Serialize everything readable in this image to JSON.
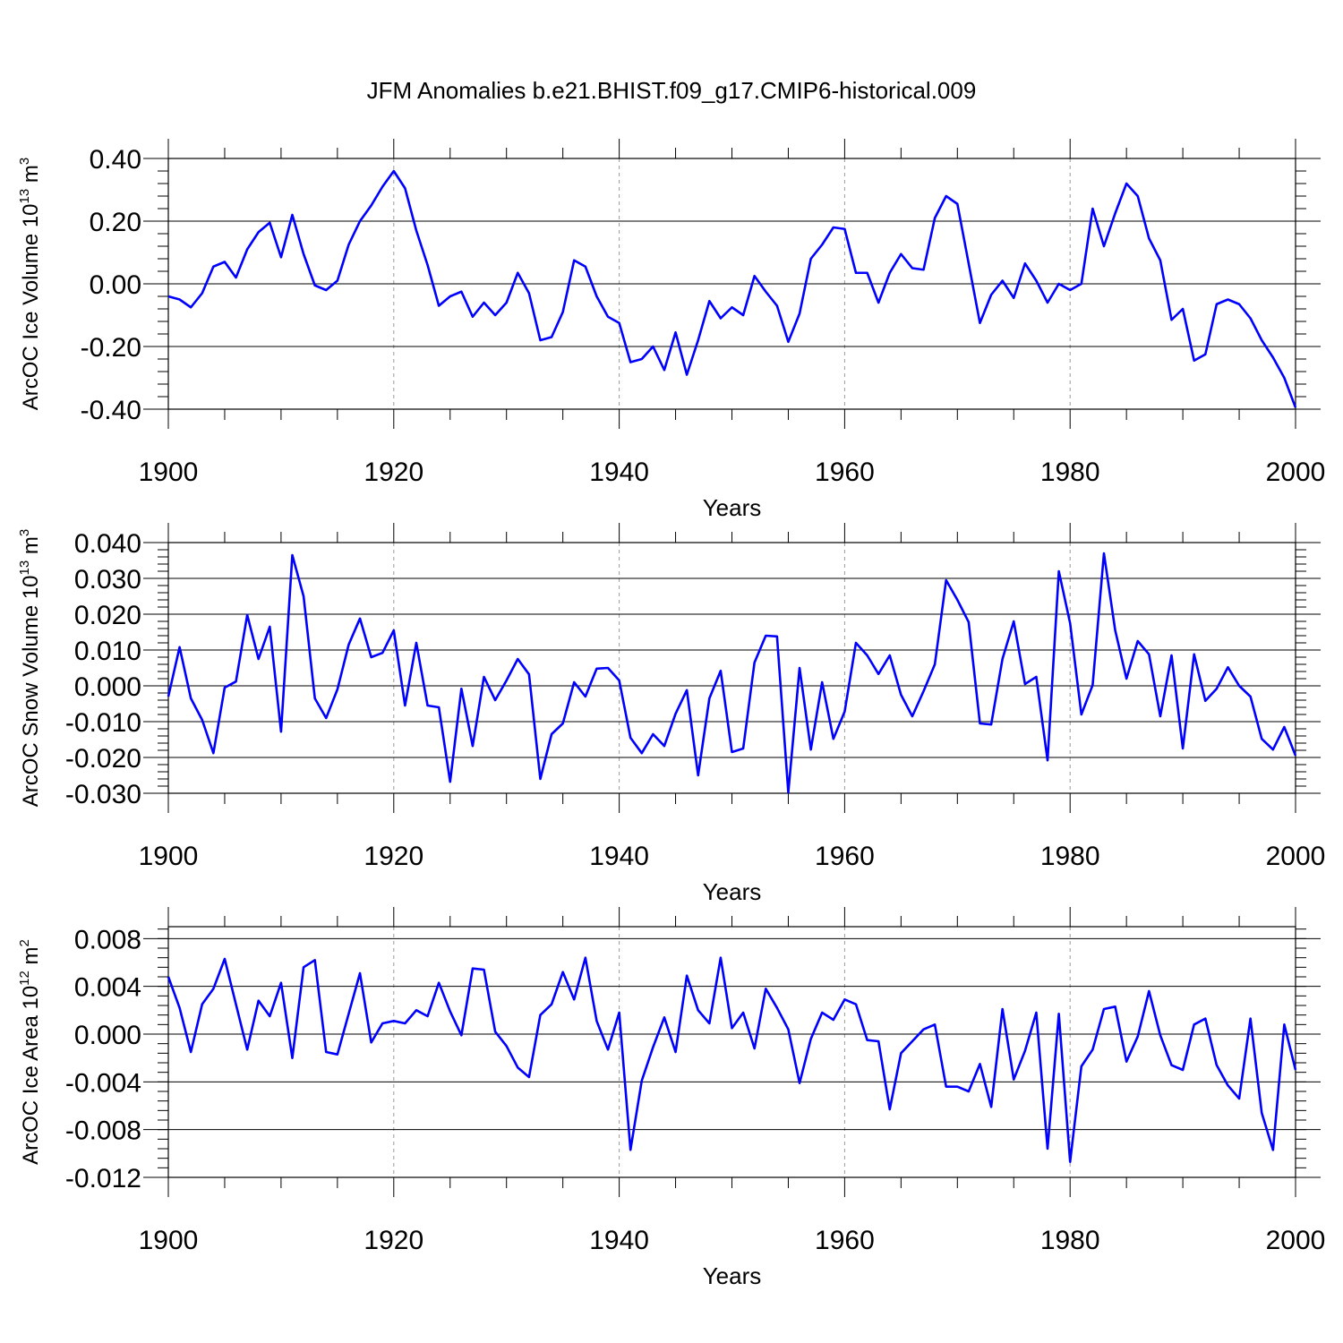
{
  "title": "JFM Anomalies b.e21.BHIST.f09_g17.CMIP6-historical.009",
  "series_color": "#0000ff",
  "chart_data": [
    {
      "type": "line",
      "id": "ice-volume",
      "ylabel": {
        "text": "ArcOC Ice Volume 10",
        "sup": "13",
        "unit": "m",
        "unit_sup": "3"
      },
      "xlabel": "Years",
      "xlim": [
        1900,
        2000
      ],
      "ylim": [
        -0.4,
        0.4
      ],
      "yticks": [
        0.4,
        0.2,
        0.0,
        -0.2,
        -0.4
      ],
      "ytick_labels": [
        "0.40",
        "0.20",
        "0.00",
        "-0.20",
        "-0.40"
      ],
      "xticks": [
        1900,
        1920,
        1940,
        1960,
        1980,
        2000
      ],
      "xtick_labels": [
        "1900",
        "1920",
        "1940",
        "1960",
        "1980",
        "2000"
      ],
      "start_year": 1900,
      "values": [
        -0.04,
        -0.05,
        -0.075,
        -0.03,
        0.055,
        0.07,
        0.02,
        0.11,
        0.165,
        0.195,
        0.085,
        0.22,
        0.095,
        -0.005,
        -0.02,
        0.01,
        0.125,
        0.2,
        0.25,
        0.31,
        0.36,
        0.305,
        0.17,
        0.06,
        -0.07,
        -0.04,
        -0.025,
        -0.105,
        -0.06,
        -0.1,
        -0.06,
        0.035,
        -0.03,
        -0.18,
        -0.17,
        -0.09,
        0.075,
        0.055,
        -0.04,
        -0.105,
        -0.125,
        -0.25,
        -0.24,
        -0.2,
        -0.275,
        -0.155,
        -0.29,
        -0.18,
        -0.055,
        -0.11,
        -0.075,
        -0.1,
        0.025,
        -0.025,
        -0.07,
        -0.185,
        -0.095,
        0.08,
        0.125,
        0.18,
        0.175,
        0.035,
        0.035,
        -0.06,
        0.035,
        0.095,
        0.05,
        0.045,
        0.21,
        0.28,
        0.255,
        0.065,
        -0.125,
        -0.035,
        0.01,
        -0.045,
        0.065,
        0.01,
        -0.06,
        0.0,
        -0.02,
        0.0,
        0.24,
        0.12,
        0.225,
        0.32,
        0.28,
        0.145,
        0.075,
        -0.115,
        -0.08,
        -0.245,
        -0.225,
        -0.065,
        -0.05,
        -0.065,
        -0.11,
        -0.18,
        -0.235,
        -0.3,
        -0.395
      ]
    },
    {
      "type": "line",
      "id": "snow-volume",
      "ylabel": {
        "text": "ArcOC Snow Volume 10",
        "sup": "13",
        "unit": "m",
        "unit_sup": "3"
      },
      "xlabel": "Years",
      "xlim": [
        1900,
        2000
      ],
      "ylim": [
        -0.03,
        0.04
      ],
      "yticks": [
        0.04,
        0.03,
        0.02,
        0.01,
        0.0,
        -0.01,
        -0.02,
        -0.03
      ],
      "ytick_labels": [
        "0.040",
        "0.030",
        "0.020",
        "0.010",
        "0.000",
        "-0.010",
        "-0.020",
        "-0.030"
      ],
      "xticks": [
        1900,
        1920,
        1940,
        1960,
        1980,
        2000
      ],
      "xtick_labels": [
        "1900",
        "1920",
        "1940",
        "1960",
        "1980",
        "2000"
      ],
      "start_year": 1900,
      "values": [
        -0.003,
        0.0108,
        -0.0035,
        -0.0095,
        -0.0188,
        -0.0005,
        0.0012,
        0.0198,
        0.0075,
        0.0165,
        -0.0128,
        0.0365,
        0.025,
        -0.0035,
        -0.009,
        -0.001,
        0.0115,
        0.0188,
        0.008,
        0.0092,
        0.0155,
        -0.0055,
        0.012,
        -0.0055,
        -0.006,
        -0.0268,
        -0.0008,
        -0.0168,
        0.0025,
        -0.004,
        0.0015,
        0.0075,
        0.0032,
        -0.026,
        -0.0135,
        -0.0105,
        0.001,
        -0.003,
        0.0048,
        0.005,
        0.0015,
        -0.0145,
        -0.0188,
        -0.0135,
        -0.0168,
        -0.0078,
        -0.0012,
        -0.025,
        -0.0035,
        0.0042,
        -0.0185,
        -0.0175,
        0.0065,
        0.014,
        0.0138,
        -0.0298,
        0.005,
        -0.0178,
        0.001,
        -0.0148,
        -0.0072,
        0.012,
        0.0085,
        0.0033,
        0.0085,
        -0.0025,
        -0.0085,
        -0.0015,
        0.006,
        0.0295,
        0.024,
        0.0178,
        -0.0105,
        -0.0108,
        0.0075,
        0.018,
        0.0005,
        0.0025,
        -0.0208,
        0.032,
        0.0175,
        -0.008,
        0.0002,
        0.037,
        0.0155,
        0.002,
        0.0125,
        0.0088,
        -0.0085,
        0.0085,
        -0.0175,
        0.0088,
        -0.0042,
        -0.0008,
        0.0052,
        0.0,
        -0.003,
        -0.0148,
        -0.0178,
        -0.0115,
        -0.0195
      ]
    },
    {
      "type": "line",
      "id": "ice-area",
      "ylabel": {
        "text": "ArcOC Ice Area 10",
        "sup": "12",
        "unit": "m",
        "unit_sup": "2"
      },
      "xlabel": "Years",
      "xlim": [
        1900,
        2000
      ],
      "ylim": [
        -0.012,
        0.009
      ],
      "yticks": [
        0.008,
        0.004,
        0.0,
        -0.004,
        -0.008,
        -0.012
      ],
      "ytick_labels": [
        "0.008",
        "0.004",
        "0.000",
        "-0.004",
        "-0.008",
        "-0.012"
      ],
      "xticks": [
        1900,
        1920,
        1940,
        1960,
        1980,
        2000
      ],
      "xtick_labels": [
        "1900",
        "1920",
        "1940",
        "1960",
        "1980",
        "2000"
      ],
      "start_year": 1900,
      "values": [
        0.0048,
        0.0022,
        -0.0015,
        0.0025,
        0.0038,
        0.0063,
        0.0025,
        -0.0013,
        0.0028,
        0.0015,
        0.0043,
        -0.002,
        0.0056,
        0.0062,
        -0.0015,
        -0.0017,
        0.0017,
        0.0051,
        -0.0007,
        0.0009,
        0.0011,
        0.0009,
        0.002,
        0.0015,
        0.0043,
        0.0019,
        -0.0001,
        0.0055,
        0.0054,
        0.0002,
        -0.001,
        -0.0028,
        -0.0036,
        0.0016,
        0.0025,
        0.0052,
        0.0029,
        0.0064,
        0.0011,
        -0.0013,
        0.0018,
        -0.0097,
        -0.0039,
        -0.0011,
        0.0014,
        -0.0015,
        0.0049,
        0.002,
        0.0009,
        0.0064,
        0.0005,
        0.0018,
        -0.0012,
        0.0038,
        0.0022,
        0.0004,
        -0.0041,
        -0.0004,
        0.0018,
        0.0012,
        0.0029,
        0.0025,
        -0.0005,
        -0.0006,
        -0.0063,
        -0.0016,
        -0.0006,
        0.0004,
        0.0008,
        -0.0044,
        -0.0044,
        -0.0048,
        -0.0025,
        -0.0061,
        0.0021,
        -0.0038,
        -0.0014,
        0.0018,
        -0.0096,
        0.0017,
        -0.0107,
        -0.0027,
        -0.0013,
        0.0021,
        0.0023,
        -0.0023,
        -0.0002,
        0.0036,
        -0.0001,
        -0.0026,
        -0.003,
        0.0008,
        0.0013,
        -0.0026,
        -0.0043,
        -0.0054,
        0.0013,
        -0.0066,
        -0.0097,
        0.0008,
        -0.003
      ]
    }
  ]
}
